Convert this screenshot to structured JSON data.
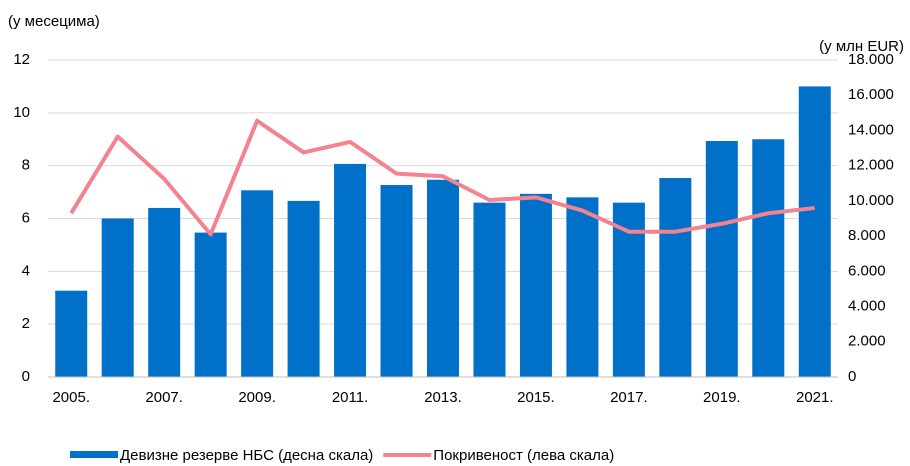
{
  "chart_data": {
    "type": "bar_line",
    "y_label": "(у месецима)",
    "y2_label": "(у млн EUR)",
    "categories": [
      "2005.",
      null,
      "2007.",
      null,
      "2009.",
      null,
      "2011.",
      null,
      "2013.",
      null,
      "2015.",
      null,
      "2017.",
      null,
      "2019.",
      null,
      "2021."
    ],
    "series": [
      {
        "name": "Девизне резерве НБС (десна скала)",
        "type": "bar",
        "axis": "y2",
        "color": "#0070c8",
        "values": [
          4900,
          9000,
          9600,
          8200,
          10600,
          10000,
          12100,
          10900,
          11200,
          9900,
          10400,
          10200,
          9900,
          11300,
          13400,
          13500,
          16500
        ]
      },
      {
        "name": "Покривеност (лева скала)",
        "type": "line",
        "color": "#f4828f",
        "values": [
          6.2,
          9.1,
          7.5,
          5.4,
          9.7,
          8.5,
          8.9,
          7.7,
          7.6,
          6.7,
          6.8,
          6.3,
          5.5,
          5.5,
          5.8,
          6.2,
          6.4
        ]
      }
    ],
    "ylim": [
      0,
      12
    ],
    "yticks": [
      0,
      2,
      4,
      6,
      8,
      10,
      12
    ],
    "y2lim": [
      0,
      18000
    ],
    "y2ticks": [
      0,
      {
        "value": 2000,
        "label": "2.000"
      },
      {
        "value": 4000,
        "label": "4.000"
      },
      {
        "value": 6000,
        "label": "6.000"
      },
      {
        "value": 8000,
        "label": "8.000"
      },
      {
        "value": 10000,
        "label": "10.000"
      },
      {
        "value": 12000,
        "label": "12.000"
      },
      {
        "value": 14000,
        "label": "14.000"
      },
      {
        "value": 16000,
        "label": "16.000"
      },
      {
        "value": 18000,
        "label": "18.000"
      }
    ],
    "grid": true
  }
}
